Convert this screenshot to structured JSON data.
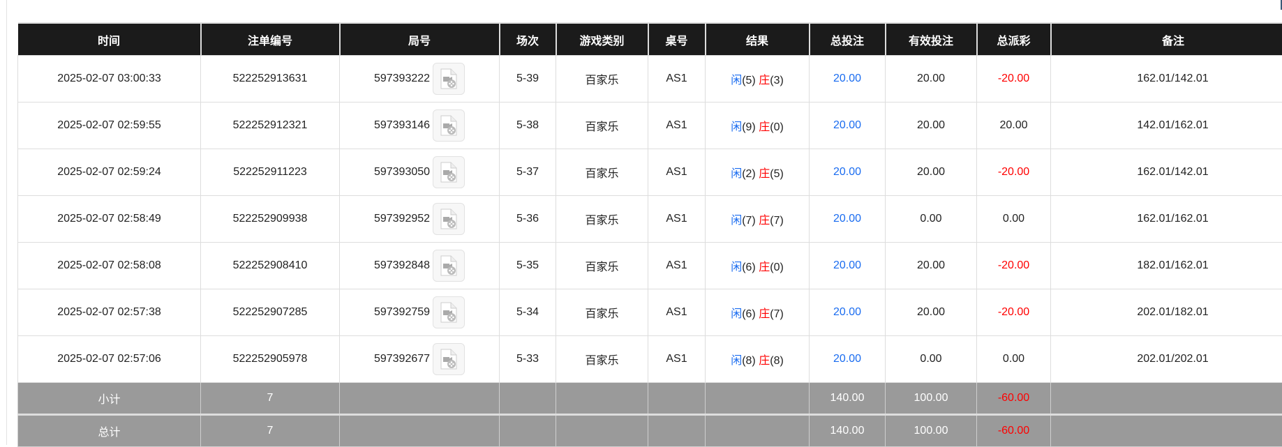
{
  "table": {
    "headers": [
      "时间",
      "注单编号",
      "局号",
      "场次",
      "游戏类别",
      "桌号",
      "结果",
      "总投注",
      "有效投注",
      "总派彩",
      "备注"
    ],
    "rows": [
      {
        "time": "2025-02-07 03:00:33",
        "bet_id": "522252913631",
        "round": "597393222",
        "session": "5-39",
        "game": "百家乐",
        "table": "AS1",
        "player_label": "闲",
        "player": "(5)",
        "banker_label": "庄",
        "banker": "(3)",
        "total_bet": "20.00",
        "valid_bet": "20.00",
        "payout": "-20.00",
        "payout_negative": true,
        "note": "162.01/142.01"
      },
      {
        "time": "2025-02-07 02:59:55",
        "bet_id": "522252912321",
        "round": "597393146",
        "session": "5-38",
        "game": "百家乐",
        "table": "AS1",
        "player_label": "闲",
        "player": "(9)",
        "banker_label": "庄",
        "banker": "(0)",
        "total_bet": "20.00",
        "valid_bet": "20.00",
        "payout": "20.00",
        "payout_negative": false,
        "note": "142.01/162.01"
      },
      {
        "time": "2025-02-07 02:59:24",
        "bet_id": "522252911223",
        "round": "597393050",
        "session": "5-37",
        "game": "百家乐",
        "table": "AS1",
        "player_label": "闲",
        "player": "(2)",
        "banker_label": "庄",
        "banker": "(5)",
        "total_bet": "20.00",
        "valid_bet": "20.00",
        "payout": "-20.00",
        "payout_negative": true,
        "note": "162.01/142.01"
      },
      {
        "time": "2025-02-07 02:58:49",
        "bet_id": "522252909938",
        "round": "597392952",
        "session": "5-36",
        "game": "百家乐",
        "table": "AS1",
        "player_label": "闲",
        "player": "(7)",
        "banker_label": "庄",
        "banker": "(7)",
        "total_bet": "20.00",
        "valid_bet": "0.00",
        "payout": "0.00",
        "payout_negative": false,
        "note": "162.01/162.01"
      },
      {
        "time": "2025-02-07 02:58:08",
        "bet_id": "522252908410",
        "round": "597392848",
        "session": "5-35",
        "game": "百家乐",
        "table": "AS1",
        "player_label": "闲",
        "player": "(6)",
        "banker_label": "庄",
        "banker": "(0)",
        "total_bet": "20.00",
        "valid_bet": "20.00",
        "payout": "-20.00",
        "payout_negative": true,
        "note": "182.01/162.01"
      },
      {
        "time": "2025-02-07 02:57:38",
        "bet_id": "522252907285",
        "round": "597392759",
        "session": "5-34",
        "game": "百家乐",
        "table": "AS1",
        "player_label": "闲",
        "player": "(6)",
        "banker_label": "庄",
        "banker": "(7)",
        "total_bet": "20.00",
        "valid_bet": "20.00",
        "payout": "-20.00",
        "payout_negative": true,
        "note": "202.01/182.01"
      },
      {
        "time": "2025-02-07 02:57:06",
        "bet_id": "522252905978",
        "round": "597392677",
        "session": "5-33",
        "game": "百家乐",
        "table": "AS1",
        "player_label": "闲",
        "player": "(8)",
        "banker_label": "庄",
        "banker": "(8)",
        "total_bet": "20.00",
        "valid_bet": "0.00",
        "payout": "0.00",
        "payout_negative": false,
        "note": "202.01/202.01"
      }
    ],
    "subtotal": {
      "label": "小计",
      "count": "7",
      "total_bet": "140.00",
      "valid_bet": "100.00",
      "payout": "-60.00"
    },
    "total": {
      "label": "总计",
      "count": "7",
      "total_bet": "140.00",
      "valid_bet": "100.00",
      "payout": "-60.00"
    }
  },
  "icons": {
    "round_video": "video-file-icon"
  },
  "colors": {
    "header_bg": "#1b1b1b",
    "player": "#1a6cf0",
    "banker": "#ff0000",
    "negative": "#ff0000",
    "summary_bg": "#9a9a9a"
  }
}
